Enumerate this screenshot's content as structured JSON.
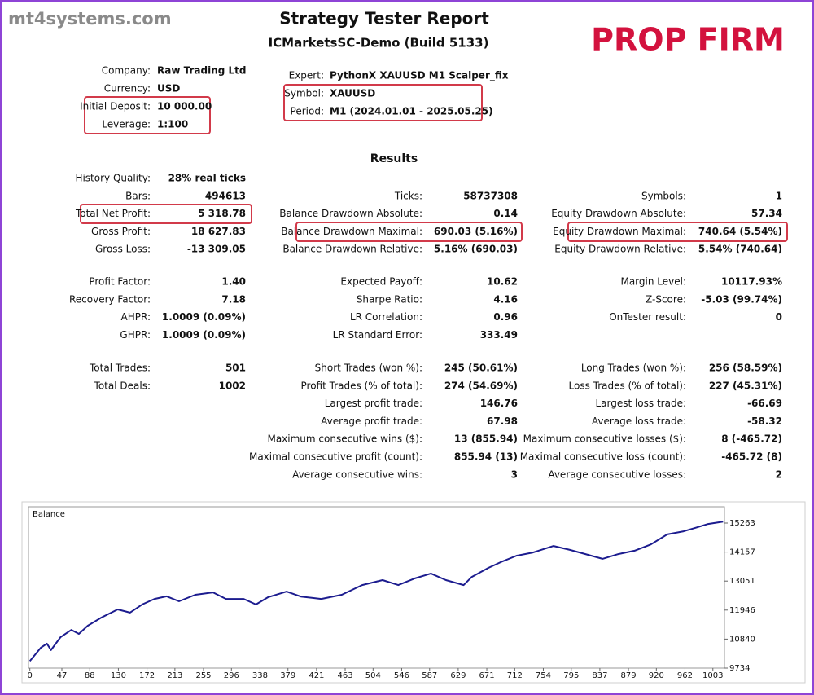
{
  "watermark": "mt4systems.com",
  "header": {
    "title": "Strategy Tester Report",
    "subtitle": "ICMarketsSC-Demo (Build 5133)",
    "badge": "PROP FIRM"
  },
  "info_left": [
    {
      "label": "Company:",
      "value": "Raw Trading Ltd"
    },
    {
      "label": "Currency:",
      "value": "USD"
    },
    {
      "label": "Initial Deposit:",
      "value": "10 000.00"
    },
    {
      "label": "Leverage:",
      "value": "1:100"
    }
  ],
  "info_right": [
    {
      "label": "Expert:",
      "value": "PythonX XAUUSD M1 Scalper_fix"
    },
    {
      "label": "Symbol:",
      "value": "XAUUSD"
    },
    {
      "label": "Period:",
      "value": "M1 (2024.01.01 - 2025.05.25)"
    }
  ],
  "results_title": "Results",
  "results": [
    [
      [
        {
          "label": "History Quality:",
          "value": "28% real ticks"
        },
        null,
        null
      ],
      [
        {
          "label": "Bars:",
          "value": "494613"
        },
        {
          "label": "Ticks:",
          "value": "58737308"
        },
        {
          "label": "Symbols:",
          "value": "1"
        }
      ],
      [
        {
          "label": "Total Net Profit:",
          "value": "5 318.78"
        },
        {
          "label": "Balance Drawdown Absolute:",
          "value": "0.14"
        },
        {
          "label": "Equity Drawdown Absolute:",
          "value": "57.34"
        }
      ],
      [
        {
          "label": "Gross Profit:",
          "value": "18 627.83"
        },
        {
          "label": "Balance Drawdown Maximal:",
          "value": "690.03 (5.16%)"
        },
        {
          "label": "Equity Drawdown Maximal:",
          "value": "740.64 (5.54%)"
        }
      ],
      [
        {
          "label": "Gross Loss:",
          "value": "-13 309.05"
        },
        {
          "label": "Balance Drawdown Relative:",
          "value": "5.16% (690.03)"
        },
        {
          "label": "Equity Drawdown Relative:",
          "value": "5.54% (740.64)"
        }
      ]
    ],
    [
      [
        {
          "label": "Profit Factor:",
          "value": "1.40"
        },
        {
          "label": "Expected Payoff:",
          "value": "10.62"
        },
        {
          "label": "Margin Level:",
          "value": "10117.93%"
        }
      ],
      [
        {
          "label": "Recovery Factor:",
          "value": "7.18"
        },
        {
          "label": "Sharpe Ratio:",
          "value": "4.16"
        },
        {
          "label": "Z-Score:",
          "value": "-5.03 (99.74%)"
        }
      ],
      [
        {
          "label": "AHPR:",
          "value": "1.0009 (0.09%)"
        },
        {
          "label": "LR Correlation:",
          "value": "0.96"
        },
        {
          "label": "OnTester result:",
          "value": "0"
        }
      ],
      [
        {
          "label": "GHPR:",
          "value": "1.0009 (0.09%)"
        },
        {
          "label": "LR Standard Error:",
          "value": "333.49"
        },
        null
      ]
    ],
    [
      [
        {
          "label": "Total Trades:",
          "value": "501"
        },
        {
          "label": "Short Trades (won %):",
          "value": "245 (50.61%)"
        },
        {
          "label": "Long Trades (won %):",
          "value": "256 (58.59%)"
        }
      ],
      [
        {
          "label": "Total Deals:",
          "value": "1002"
        },
        {
          "label": "Profit Trades (% of total):",
          "value": "274 (54.69%)"
        },
        {
          "label": "Loss Trades (% of total):",
          "value": "227 (45.31%)"
        }
      ],
      [
        null,
        {
          "label": "Largest profit trade:",
          "value": "146.76"
        },
        {
          "label": "Largest loss trade:",
          "value": "-66.69"
        }
      ],
      [
        null,
        {
          "label": "Average profit trade:",
          "value": "67.98"
        },
        {
          "label": "Average loss trade:",
          "value": "-58.32"
        }
      ],
      [
        null,
        {
          "label": "Maximum consecutive wins ($):",
          "value": "13 (855.94)"
        },
        {
          "label": "Maximum consecutive losses ($):",
          "value": "8 (-465.72)"
        }
      ],
      [
        null,
        {
          "label": "Maximal consecutive profit (count):",
          "value": "855.94 (13)"
        },
        {
          "label": "Maximal consecutive loss (count):",
          "value": "-465.72 (8)"
        }
      ],
      [
        null,
        {
          "label": "Average consecutive wins:",
          "value": "3"
        },
        {
          "label": "Average consecutive losses:",
          "value": "2"
        }
      ]
    ]
  ],
  "chart_data": {
    "type": "line",
    "x": [
      0,
      16,
      25,
      31,
      45,
      61,
      72,
      85,
      105,
      129,
      147,
      165,
      183,
      201,
      219,
      243,
      269,
      288,
      314,
      332,
      350,
      377,
      398,
      428,
      458,
      488,
      518,
      541,
      565,
      589,
      611,
      637,
      649,
      673,
      691,
      715,
      739,
      769,
      793,
      816,
      841,
      864,
      888,
      912,
      936,
      960,
      977,
      996,
      1018
    ],
    "series": [
      {
        "name": "Balance",
        "color": "#1c1c8f",
        "values": [
          10000,
          10510,
          10670,
          10420,
          10910,
          11190,
          11040,
          11350,
          11660,
          11970,
          11850,
          12160,
          12370,
          12470,
          12280,
          12530,
          12620,
          12370,
          12370,
          12160,
          12440,
          12650,
          12460,
          12370,
          12530,
          12900,
          13090,
          12900,
          13150,
          13340,
          13090,
          12900,
          13210,
          13550,
          13770,
          14020,
          14140,
          14390,
          14240,
          14080,
          13900,
          14080,
          14210,
          14450,
          14830,
          14950,
          15080,
          15230,
          15320
        ]
      }
    ],
    "xlim": [
      -2,
      1020
    ],
    "ylim": [
      9734,
      15884
    ],
    "xticks": [
      0,
      47,
      88,
      130,
      172,
      213,
      255,
      296,
      338,
      379,
      421,
      463,
      504,
      546,
      587,
      629,
      671,
      712,
      754,
      795,
      837,
      879,
      920,
      962,
      1003
    ],
    "yticks": [
      9734,
      10840,
      11946,
      13051,
      14157,
      15263
    ]
  }
}
